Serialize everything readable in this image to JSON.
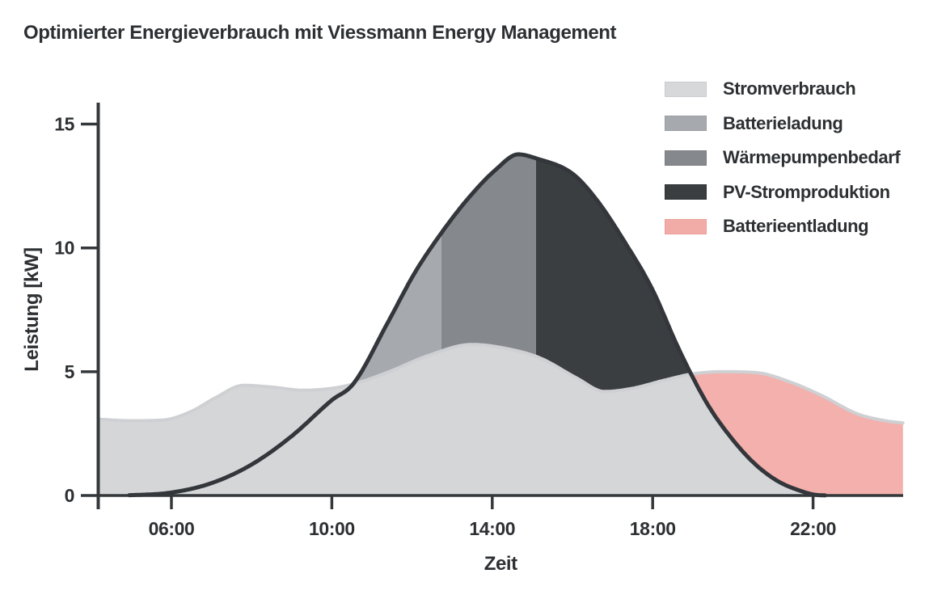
{
  "title": "Optimierter Energieverbrauch mit Viessmann Energy Management",
  "legend": {
    "items": [
      {
        "id": "consumption",
        "label": "Stromverbrauch",
        "fill": "#d7d8da",
        "border": "#c9cacd"
      },
      {
        "id": "battery-charge",
        "label": "Batterieladung",
        "fill": "#a6aaae",
        "border": "#999da1"
      },
      {
        "id": "heat-pump",
        "label": "Wärmepumpenbedarf",
        "fill": "#85888c",
        "border": "#797c80"
      },
      {
        "id": "pv-production",
        "label": "PV-Stromproduktion",
        "fill": "#3b3e41",
        "border": "#2d3033"
      },
      {
        "id": "battery-discharge",
        "label": "Batterieentladung",
        "fill": "#f2aca8",
        "border": "#ea9e9a"
      }
    ]
  },
  "chart_data": {
    "type": "area",
    "title": "Optimierter Energieverbrauch mit Viessmann Energy Management",
    "xlabel": "Zeit",
    "ylabel": "Leistung [kW]",
    "x_domain_hours": [
      4.18,
      24.24
    ],
    "ylim": [
      0,
      15
    ],
    "grid": false,
    "legend_position": "top-right",
    "xticks": [
      {
        "hour": 6,
        "label": "06:00"
      },
      {
        "hour": 10,
        "label": "10:00"
      },
      {
        "hour": 14,
        "label": "14:00"
      },
      {
        "hour": 18,
        "label": "18:00"
      },
      {
        "hour": 22,
        "label": "22:00"
      }
    ],
    "yticks": [
      {
        "value": 0,
        "label": "0"
      },
      {
        "value": 5,
        "label": "5"
      },
      {
        "value": 10,
        "label": "10"
      },
      {
        "value": 15,
        "label": "15"
      }
    ],
    "series": [
      {
        "id": "consumption",
        "name": "Stromverbrauch",
        "unit": "kW",
        "stroke_color": "#cfd0d3",
        "fill_color": "#d5d6d8",
        "points_hour_kw": [
          [
            4.18,
            3.08
          ],
          [
            5.0,
            3.02
          ],
          [
            5.8,
            3.05
          ],
          [
            6.5,
            3.4
          ],
          [
            7.1,
            3.95
          ],
          [
            7.8,
            4.45
          ],
          [
            8.5,
            4.38
          ],
          [
            9.3,
            4.25
          ],
          [
            10.0,
            4.33
          ],
          [
            10.53,
            4.5
          ],
          [
            11.4,
            4.98
          ],
          [
            12.4,
            5.65
          ],
          [
            13.5,
            6.1
          ],
          [
            14.4,
            5.92
          ],
          [
            15.2,
            5.55
          ],
          [
            16.1,
            4.75
          ],
          [
            16.8,
            4.2
          ],
          [
            17.5,
            4.33
          ],
          [
            18.3,
            4.66
          ],
          [
            18.96,
            4.9
          ],
          [
            19.7,
            5.0
          ],
          [
            20.6,
            4.96
          ],
          [
            21.4,
            4.6
          ],
          [
            22.2,
            4.05
          ],
          [
            23.1,
            3.3
          ],
          [
            23.8,
            3.02
          ],
          [
            24.24,
            2.93
          ]
        ]
      },
      {
        "id": "pv",
        "name": "PV-Stromproduktion",
        "unit": "kW",
        "stroke_color": "#33363a",
        "fill_color": "#3b3e41",
        "points_hour_kw": [
          [
            4.18,
            0
          ],
          [
            5.1,
            0.02
          ],
          [
            6.0,
            0.12
          ],
          [
            7.0,
            0.5
          ],
          [
            8.0,
            1.25
          ],
          [
            9.0,
            2.4
          ],
          [
            10.0,
            3.85
          ],
          [
            10.53,
            4.5
          ],
          [
            11.4,
            7.0
          ],
          [
            12.07,
            9.0
          ],
          [
            12.73,
            10.6
          ],
          [
            13.4,
            12.0
          ],
          [
            14.08,
            13.15
          ],
          [
            14.65,
            13.78
          ],
          [
            15.09,
            13.62
          ],
          [
            16.0,
            13.0
          ],
          [
            16.6,
            11.95
          ],
          [
            17.3,
            10.25
          ],
          [
            18.0,
            8.3
          ],
          [
            18.6,
            6.1
          ],
          [
            18.96,
            4.9
          ],
          [
            19.4,
            3.6
          ],
          [
            19.9,
            2.45
          ],
          [
            20.5,
            1.35
          ],
          [
            21.1,
            0.6
          ],
          [
            21.7,
            0.18
          ],
          [
            22.1,
            0.02
          ],
          [
            22.6,
            0
          ],
          [
            24.24,
            0
          ]
        ]
      }
    ],
    "regions": [
      {
        "id": "battery-charge",
        "name": "Batterieladung",
        "between": "pv-over-consumption",
        "from_hour": 10.53,
        "to_hour": 12.73,
        "fill": "#a6aaae"
      },
      {
        "id": "heat-pump",
        "name": "Wärmepumpenbedarf",
        "between": "pv-over-consumption",
        "from_hour": 12.73,
        "to_hour": 15.09,
        "fill": "#85888c"
      },
      {
        "id": "pv-production",
        "name": "PV-Stromproduktion",
        "between": "pv-over-consumption",
        "from_hour": 15.09,
        "to_hour": 18.96,
        "fill": "#3b3e41"
      },
      {
        "id": "battery-discharge",
        "name": "Batterieentladung",
        "between": "consumption-over-pv",
        "from_hour": 18.96,
        "to_hour": 24.24,
        "fill": "#f3b0ac"
      }
    ],
    "colors": {
      "axis": "#35383b",
      "text": "#2d3033"
    }
  }
}
